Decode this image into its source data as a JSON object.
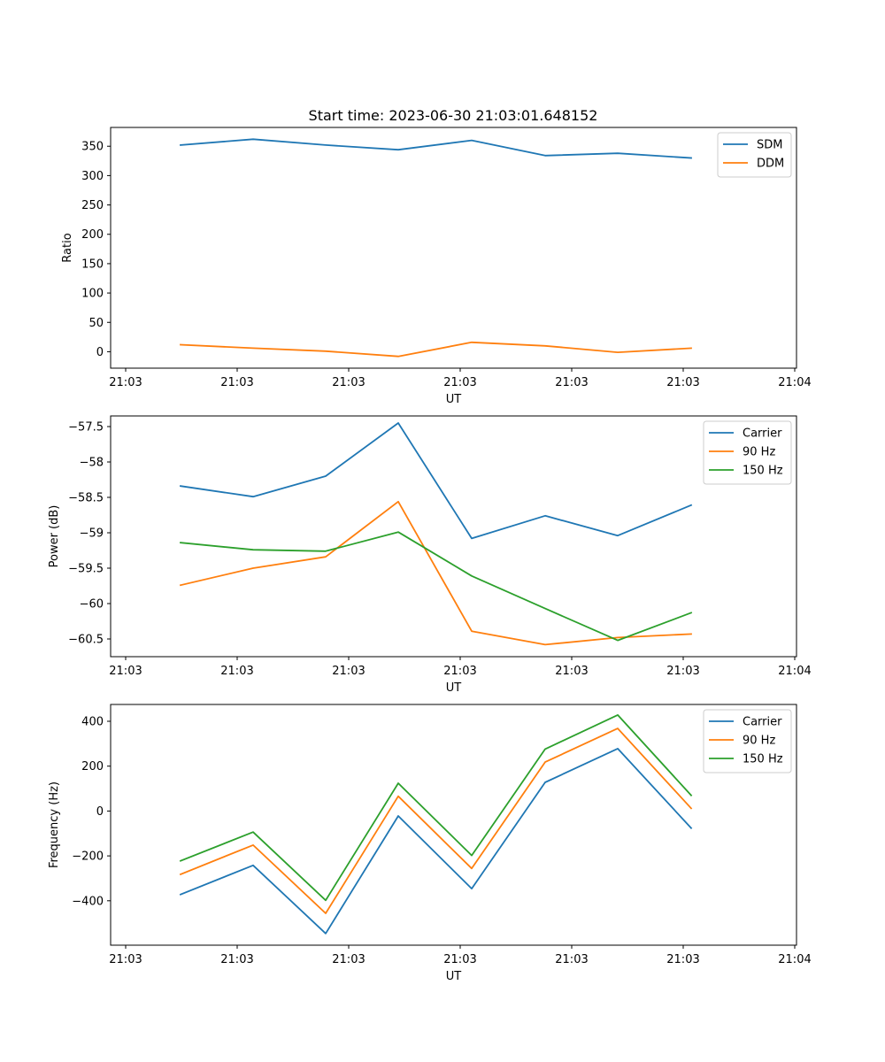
{
  "title": "Start time: 2023-06-30 21:03:01.648152",
  "chart_data": [
    {
      "type": "line",
      "xlabel": "UT",
      "ylabel": "Ratio",
      "x_tick_labels": [
        "21:03",
        "21:03",
        "21:03",
        "21:03",
        "21:03",
        "21:03",
        "21:04"
      ],
      "yticks": [
        0,
        50,
        100,
        150,
        200,
        250,
        300,
        350
      ],
      "ylim": [
        -28,
        382
      ],
      "legend": "top-right",
      "grid": false,
      "series": [
        {
          "name": "SDM",
          "color": "#1f77b4",
          "values": [
            352,
            362,
            352,
            344,
            360,
            334,
            338,
            330
          ]
        },
        {
          "name": "DDM",
          "color": "#ff7f0e",
          "values": [
            12,
            6,
            1,
            -8,
            16,
            10,
            -1,
            6
          ]
        }
      ]
    },
    {
      "type": "line",
      "xlabel": "UT",
      "ylabel": "Power (dB)",
      "x_tick_labels": [
        "21:03",
        "21:03",
        "21:03",
        "21:03",
        "21:03",
        "21:03",
        "21:04"
      ],
      "yticks": [
        -57.5,
        -58.0,
        -58.5,
        -59.0,
        -59.5,
        -60.0,
        -60.5
      ],
      "ylim": [
        -60.75,
        -57.35
      ],
      "legend": "top-right",
      "grid": false,
      "series": [
        {
          "name": "Carrier",
          "color": "#1f77b4",
          "values": [
            -58.34,
            -58.49,
            -58.2,
            -57.45,
            -59.08,
            -58.76,
            -59.04,
            -58.61
          ]
        },
        {
          "name": "90 Hz",
          "color": "#ff7f0e",
          "values": [
            -59.74,
            -59.5,
            -59.34,
            -58.56,
            -60.39,
            -60.58,
            -60.48,
            -60.43
          ]
        },
        {
          "name": "150 Hz",
          "color": "#2ca02c",
          "values": [
            -59.14,
            -59.24,
            -59.26,
            -58.99,
            -59.61,
            -60.07,
            -60.52,
            -60.13
          ]
        }
      ]
    },
    {
      "type": "line",
      "xlabel": "UT",
      "ylabel": "Frequency (Hz)",
      "x_tick_labels": [
        "21:03",
        "21:03",
        "21:03",
        "21:03",
        "21:03",
        "21:03",
        "21:04"
      ],
      "yticks": [
        400,
        200,
        0,
        -200,
        -400
      ],
      "ylim": [
        -598,
        475
      ],
      "legend": "top-right",
      "grid": false,
      "series": [
        {
          "name": "Carrier",
          "color": "#1f77b4",
          "values": [
            -372,
            -242,
            -546,
            -22,
            -346,
            128,
            278,
            -76
          ]
        },
        {
          "name": "90 Hz",
          "color": "#ff7f0e",
          "values": [
            -282,
            -152,
            -456,
            66,
            -256,
            218,
            368,
            12
          ]
        },
        {
          "name": "150 Hz",
          "color": "#2ca02c",
          "values": [
            -222,
            -94,
            -398,
            124,
            -198,
            276,
            428,
            70
          ]
        }
      ]
    }
  ]
}
